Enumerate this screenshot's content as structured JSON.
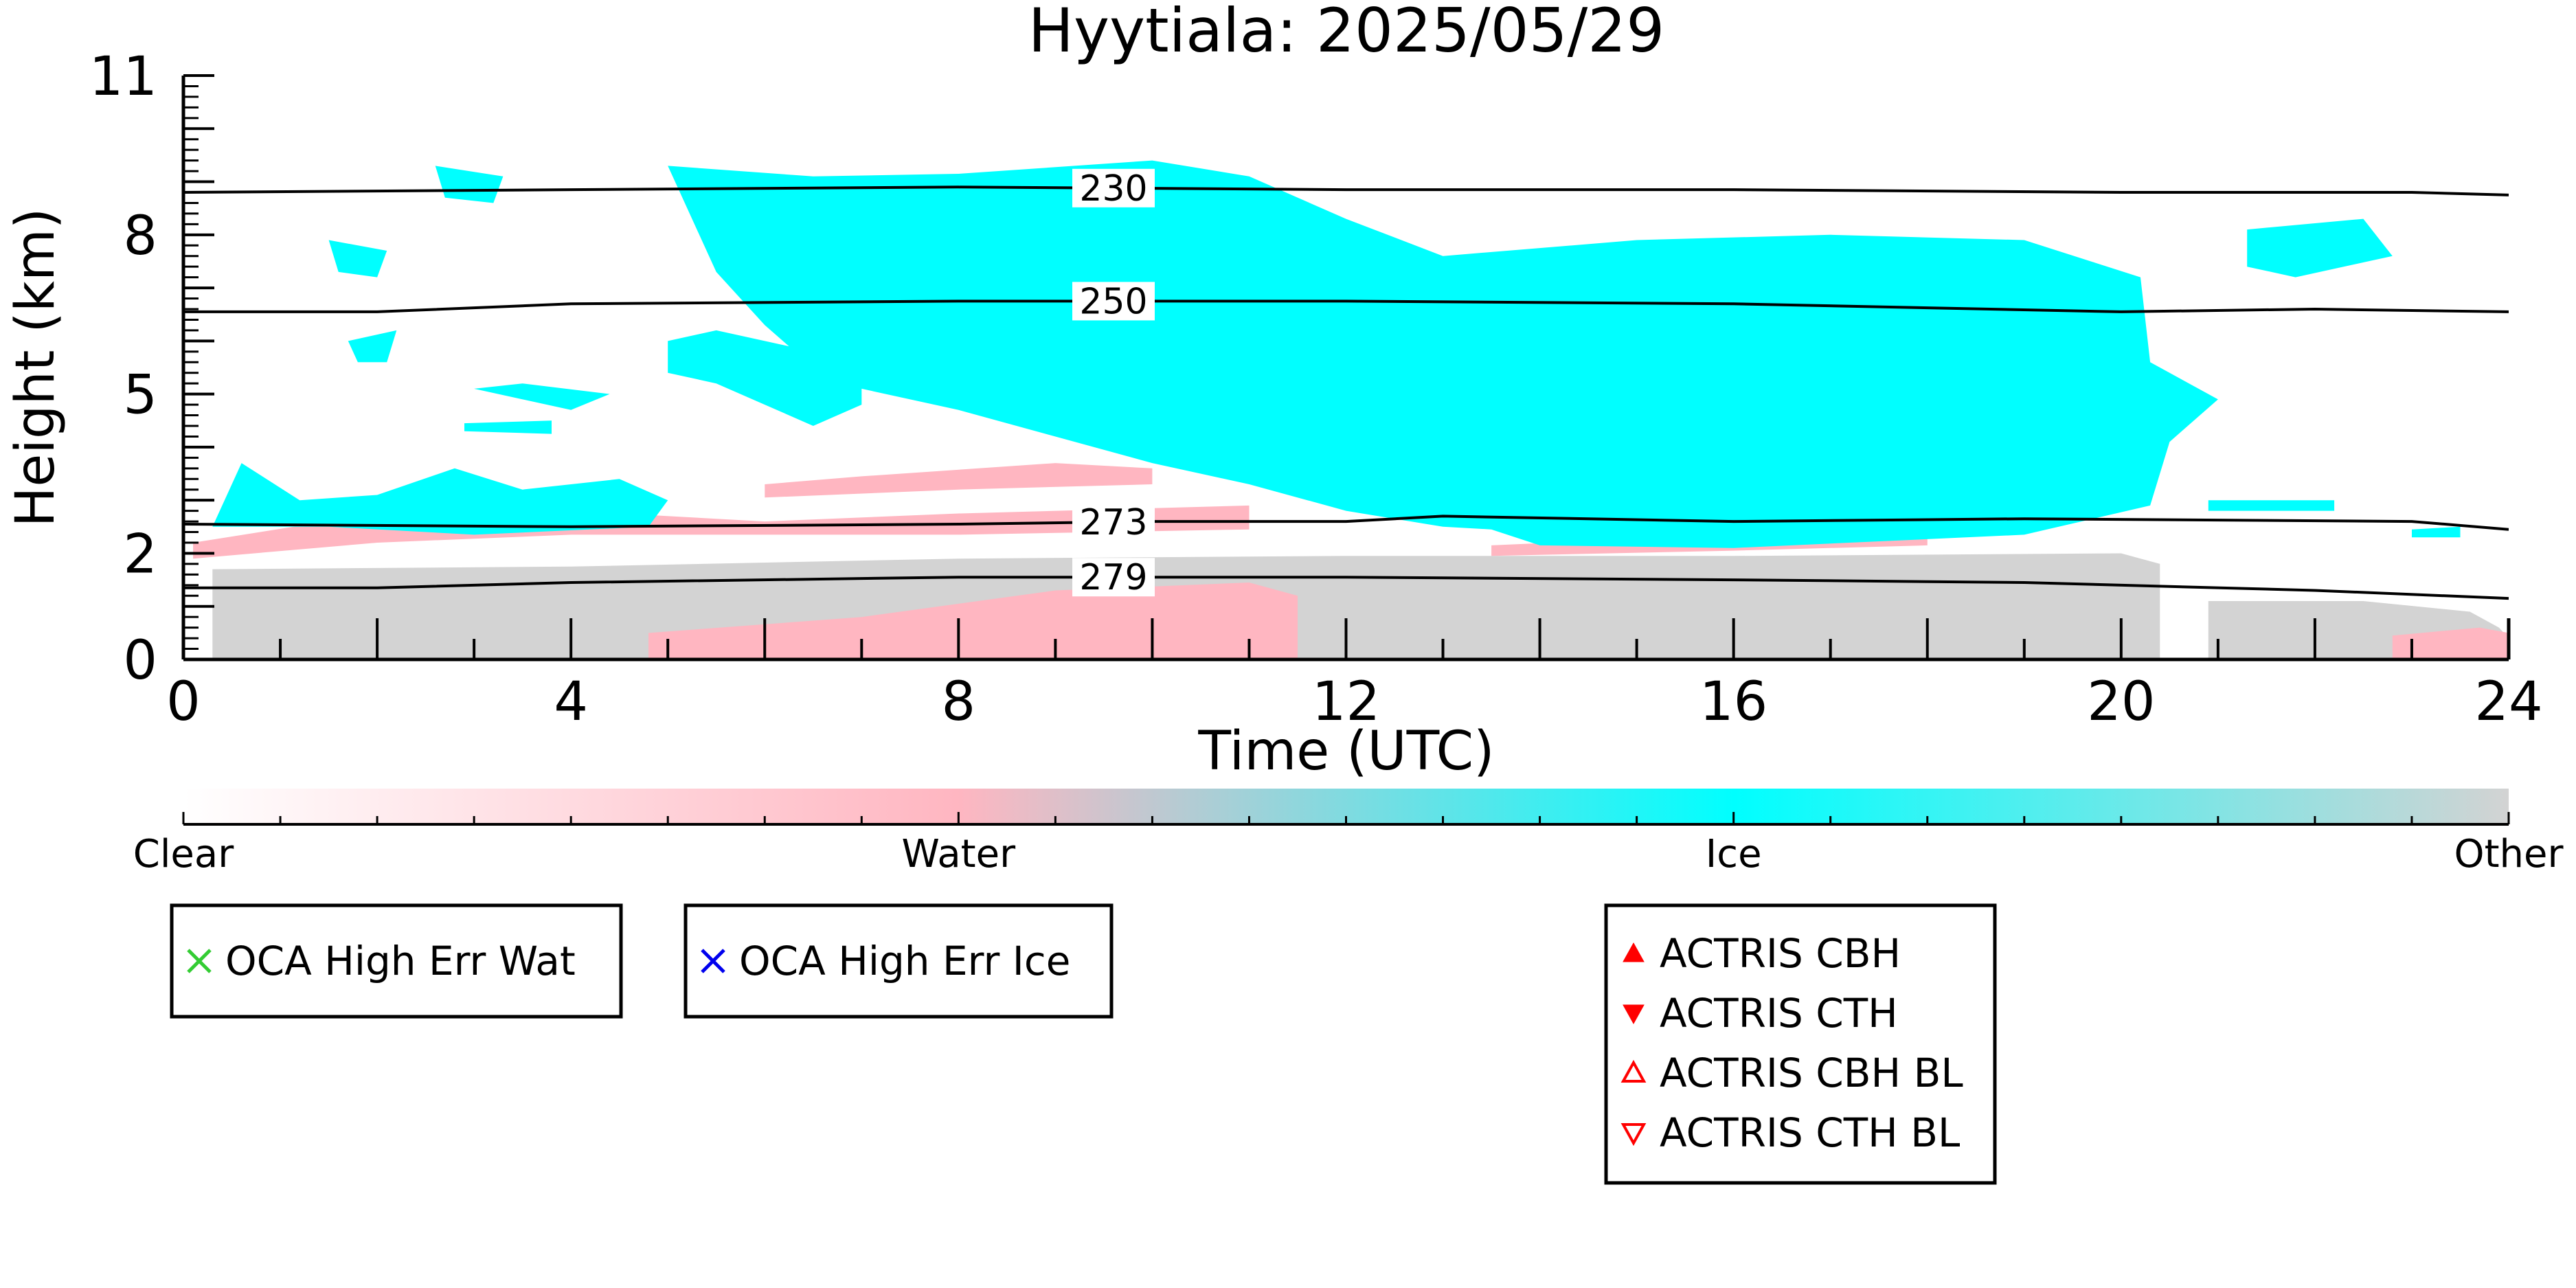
{
  "chart_data": {
    "type": "heatmap",
    "title": "Hyytiala: 2025/05/29",
    "xlabel": "Time (UTC)",
    "ylabel": "Height (km)",
    "xlim": [
      0,
      24
    ],
    "ylim": [
      0,
      11
    ],
    "x_ticks": [
      0,
      4,
      8,
      12,
      16,
      20,
      24
    ],
    "y_ticks": [
      0,
      2,
      5,
      8,
      11
    ],
    "colorbar": {
      "labels": [
        "Clear",
        "Water",
        "Ice",
        "Other"
      ],
      "colors": [
        "#ffffff",
        "#ffb6c1",
        "#00ffff",
        "#d3d3d3"
      ]
    },
    "isotherms": [
      {
        "label": "230",
        "points": [
          [
            0,
            8.8
          ],
          [
            4,
            8.85
          ],
          [
            8,
            8.9
          ],
          [
            12,
            8.85
          ],
          [
            16,
            8.85
          ],
          [
            20,
            8.8
          ],
          [
            23,
            8.8
          ],
          [
            24,
            8.75
          ]
        ]
      },
      {
        "label": "250",
        "points": [
          [
            0,
            6.55
          ],
          [
            2,
            6.55
          ],
          [
            4,
            6.7
          ],
          [
            8,
            6.75
          ],
          [
            12,
            6.75
          ],
          [
            16,
            6.7
          ],
          [
            20,
            6.55
          ],
          [
            22,
            6.6
          ],
          [
            24,
            6.55
          ]
        ]
      },
      {
        "label": "273",
        "points": [
          [
            0,
            2.55
          ],
          [
            4,
            2.5
          ],
          [
            8,
            2.55
          ],
          [
            10,
            2.6
          ],
          [
            12,
            2.6
          ],
          [
            13,
            2.7
          ],
          [
            16,
            2.6
          ],
          [
            19,
            2.65
          ],
          [
            23,
            2.6
          ],
          [
            24,
            2.45
          ]
        ]
      },
      {
        "label": "279",
        "points": [
          [
            0,
            1.35
          ],
          [
            2,
            1.35
          ],
          [
            4,
            1.45
          ],
          [
            8,
            1.55
          ],
          [
            12,
            1.55
          ],
          [
            16,
            1.5
          ],
          [
            19,
            1.45
          ],
          [
            22,
            1.3
          ],
          [
            24,
            1.15
          ]
        ]
      }
    ],
    "classification_regions": [
      {
        "class": "Other",
        "points": [
          [
            0.3,
            0
          ],
          [
            0.3,
            1.7
          ],
          [
            4,
            1.75
          ],
          [
            8,
            1.9
          ],
          [
            12,
            1.95
          ],
          [
            16,
            1.95
          ],
          [
            20,
            2.0
          ],
          [
            20.4,
            1.8
          ],
          [
            20.4,
            0
          ]
        ]
      },
      {
        "class": "Other",
        "points": [
          [
            20.9,
            0
          ],
          [
            20.9,
            1.1
          ],
          [
            22.5,
            1.1
          ],
          [
            23.6,
            0.9
          ],
          [
            23.9,
            0.6
          ],
          [
            24,
            0.4
          ],
          [
            24,
            0
          ]
        ]
      },
      {
        "class": "Water",
        "points": [
          [
            0.1,
            2.2
          ],
          [
            2,
            2.75
          ],
          [
            4,
            2.8
          ],
          [
            6,
            2.6
          ],
          [
            8,
            2.75
          ],
          [
            11,
            2.9
          ],
          [
            11,
            2.45
          ],
          [
            8,
            2.35
          ],
          [
            4,
            2.35
          ],
          [
            2,
            2.2
          ],
          [
            0.1,
            1.9
          ]
        ]
      },
      {
        "class": "Water",
        "points": [
          [
            13.5,
            2.15
          ],
          [
            16,
            2.35
          ],
          [
            18,
            2.45
          ],
          [
            18,
            2.15
          ],
          [
            16,
            2.05
          ],
          [
            13.5,
            1.95
          ]
        ]
      },
      {
        "class": "Water",
        "points": [
          [
            4.8,
            0
          ],
          [
            4.8,
            0.5
          ],
          [
            7,
            0.8
          ],
          [
            9,
            1.3
          ],
          [
            11,
            1.45
          ],
          [
            11.5,
            1.2
          ],
          [
            11.5,
            0
          ]
        ]
      },
      {
        "class": "Water",
        "points": [
          [
            6,
            3.3
          ],
          [
            7,
            3.45
          ],
          [
            9,
            3.7
          ],
          [
            10,
            3.6
          ],
          [
            10,
            3.3
          ],
          [
            8,
            3.2
          ],
          [
            6,
            3.05
          ]
        ]
      },
      {
        "class": "Water",
        "points": [
          [
            22.8,
            0
          ],
          [
            22.8,
            0.45
          ],
          [
            23.7,
            0.6
          ],
          [
            24,
            0.5
          ],
          [
            24,
            0
          ]
        ]
      },
      {
        "class": "Ice",
        "points": [
          [
            0.3,
            2.5
          ],
          [
            0.6,
            3.7
          ],
          [
            1.2,
            3.0
          ],
          [
            2.0,
            3.1
          ],
          [
            2.8,
            3.6
          ],
          [
            3.5,
            3.2
          ],
          [
            4.5,
            3.4
          ],
          [
            5.0,
            3.0
          ],
          [
            4.8,
            2.5
          ],
          [
            3,
            2.35
          ],
          [
            1.5,
            2.5
          ]
        ]
      },
      {
        "class": "Ice",
        "points": [
          [
            5,
            9.3
          ],
          [
            6.5,
            9.1
          ],
          [
            8,
            9.15
          ],
          [
            10,
            9.4
          ],
          [
            11,
            9.1
          ],
          [
            12,
            8.3
          ],
          [
            13,
            7.6
          ],
          [
            15,
            7.9
          ],
          [
            17,
            8.0
          ],
          [
            19,
            7.9
          ],
          [
            20.2,
            7.2
          ],
          [
            20.3,
            5.6
          ],
          [
            21,
            4.9
          ],
          [
            20.5,
            4.1
          ],
          [
            20.3,
            2.9
          ],
          [
            19,
            2.35
          ],
          [
            16,
            2.1
          ],
          [
            14,
            2.15
          ],
          [
            13.5,
            2.45
          ],
          [
            13,
            2.5
          ],
          [
            12,
            2.8
          ],
          [
            11,
            3.3
          ],
          [
            10,
            3.7
          ],
          [
            9,
            4.2
          ],
          [
            8,
            4.7
          ],
          [
            7,
            5.1
          ],
          [
            6.5,
            5.5
          ],
          [
            6,
            6.3
          ],
          [
            5.5,
            7.3
          ]
        ]
      },
      {
        "class": "Ice",
        "points": [
          [
            5.0,
            6.0
          ],
          [
            5.5,
            6.2
          ],
          [
            6,
            6.0
          ],
          [
            6.5,
            5.8
          ],
          [
            7,
            5.4
          ],
          [
            7,
            4.8
          ],
          [
            6.5,
            4.4
          ],
          [
            6.0,
            4.8
          ],
          [
            5.5,
            5.2
          ],
          [
            5.0,
            5.4
          ]
        ]
      },
      {
        "class": "Ice",
        "points": [
          [
            3.0,
            5.1
          ],
          [
            3.5,
            5.2
          ],
          [
            4.4,
            5.0
          ],
          [
            4.0,
            4.7
          ]
        ]
      },
      {
        "class": "Ice",
        "points": [
          [
            2.6,
            9.3
          ],
          [
            3.3,
            9.1
          ],
          [
            3.2,
            8.6
          ],
          [
            2.7,
            8.7
          ]
        ]
      },
      {
        "class": "Ice",
        "points": [
          [
            1.5,
            7.9
          ],
          [
            2.1,
            7.7
          ],
          [
            2.0,
            7.2
          ],
          [
            1.6,
            7.3
          ]
        ]
      },
      {
        "class": "Ice",
        "points": [
          [
            1.7,
            6.0
          ],
          [
            2.2,
            6.2
          ],
          [
            2.1,
            5.6
          ],
          [
            1.8,
            5.6
          ]
        ]
      },
      {
        "class": "Ice",
        "points": [
          [
            2.9,
            4.45
          ],
          [
            3.8,
            4.5
          ],
          [
            3.8,
            4.25
          ],
          [
            2.9,
            4.3
          ]
        ]
      },
      {
        "class": "Ice",
        "points": [
          [
            20.9,
            3.0
          ],
          [
            22.2,
            3.0
          ],
          [
            22.2,
            2.8
          ],
          [
            20.9,
            2.8
          ]
        ]
      },
      {
        "class": "Ice",
        "points": [
          [
            21.3,
            8.1
          ],
          [
            22.5,
            8.3
          ],
          [
            22.8,
            7.6
          ],
          [
            21.8,
            7.2
          ],
          [
            21.3,
            7.4
          ]
        ]
      },
      {
        "class": "Ice",
        "points": [
          [
            23.0,
            2.45
          ],
          [
            23.5,
            2.5
          ],
          [
            23.5,
            2.3
          ],
          [
            23.0,
            2.3
          ]
        ]
      },
      {
        "class": "Other",
        "points": [
          [
            12.8,
            1.55
          ],
          [
            13.4,
            1.6
          ],
          [
            13.3,
            0
          ],
          [
            12.9,
            0
          ]
        ]
      }
    ]
  },
  "legends": [
    {
      "id": "oca-wat",
      "entries": [
        {
          "marker": "×",
          "color": "#33cc33",
          "label": "OCA High Err Wat"
        }
      ]
    },
    {
      "id": "oca-ice",
      "entries": [
        {
          "marker": "×",
          "color": "#0000ee",
          "label": "OCA High Err Ice"
        }
      ]
    },
    {
      "id": "actris",
      "entries": [
        {
          "marker": "triangle-up-filled",
          "color": "#ff0000",
          "label": "ACTRIS CBH"
        },
        {
          "marker": "triangle-down-filled",
          "color": "#ff0000",
          "label": "ACTRIS CTH"
        },
        {
          "marker": "triangle-up-open",
          "color": "#ff0000",
          "label": "ACTRIS CBH BL"
        },
        {
          "marker": "triangle-down-open",
          "color": "#ff0000",
          "label": "ACTRIS CTH BL"
        }
      ]
    }
  ]
}
